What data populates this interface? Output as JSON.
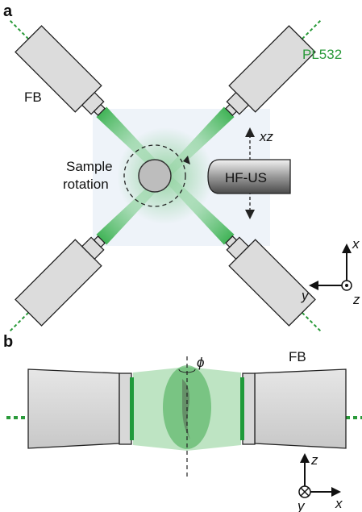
{
  "panel_a": {
    "label": "a",
    "fiber_label": "FB",
    "laser_label": "PL532",
    "sample_label": [
      "Sample",
      "rotation"
    ],
    "transducer_label": "HF-US",
    "scan_label": "xz",
    "axes": {
      "x": "x",
      "y": "y",
      "z": "z"
    }
  },
  "panel_b": {
    "label": "b",
    "angle_label": "ϕ",
    "fiber_label": "FB",
    "axes": {
      "z": "z",
      "y": "y",
      "x": "x"
    }
  }
}
